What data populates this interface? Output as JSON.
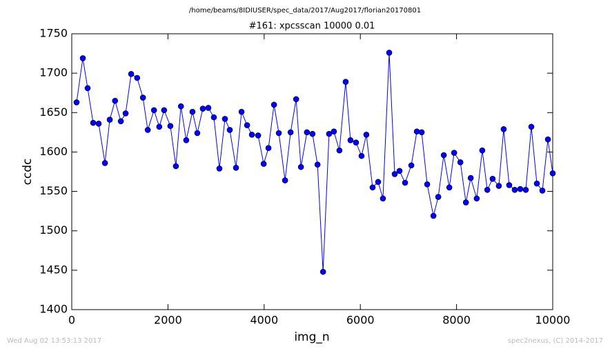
{
  "chart_data": {
    "type": "line",
    "title": "/home/beams/8IDIUSER/spec_data/2017/Aug2017/florian20170801",
    "subtitle": "#161: xpcsscan 10000 0.01",
    "x_label": "img_n",
    "y_label": "ccdc",
    "timestamp": "Wed Aug 02 13:53:13 2017",
    "credit": "spec2nexus, (C) 2014-2017",
    "xlim": [
      0,
      10000
    ],
    "ylim": [
      1400,
      1750
    ],
    "xticks": [
      0,
      2000,
      4000,
      6000,
      8000,
      10000
    ],
    "yticks": [
      1400,
      1450,
      1500,
      1550,
      1600,
      1650,
      1700,
      1750
    ],
    "grid": false,
    "series": [
      {
        "color": "#0000ff",
        "x": [
          100,
          230,
          330,
          445,
          560,
          690,
          790,
          900,
          1020,
          1120,
          1235,
          1360,
          1480,
          1580,
          1710,
          1820,
          1920,
          2050,
          2165,
          2270,
          2380,
          2510,
          2610,
          2725,
          2840,
          2955,
          3070,
          3185,
          3285,
          3415,
          3530,
          3645,
          3745,
          3875,
          3990,
          4090,
          4205,
          4305,
          4435,
          4550,
          4665,
          4765,
          4890,
          5005,
          5110,
          5225,
          5350,
          5450,
          5565,
          5695,
          5795,
          5910,
          6025,
          6125,
          6255,
          6370,
          6470,
          6600,
          6715,
          6815,
          6930,
          7060,
          7175,
          7275,
          7390,
          7520,
          7620,
          7735,
          7850,
          7950,
          8080,
          8195,
          8295,
          8420,
          8535,
          8640,
          8750,
          8880,
          8980,
          9095,
          9210,
          9325,
          9440,
          9555,
          9670,
          9785,
          9900,
          10000
        ],
        "values": [
          1663,
          1719,
          1681,
          1637,
          1636,
          1586,
          1641,
          1665,
          1639,
          1649,
          1699,
          1694,
          1669,
          1628,
          1653,
          1632,
          1653,
          1633,
          1582,
          1658,
          1615,
          1651,
          1624,
          1655,
          1656,
          1644,
          1579,
          1642,
          1628,
          1580,
          1651,
          1634,
          1622,
          1621,
          1585,
          1605,
          1660,
          1624,
          1564,
          1625,
          1667,
          1581,
          1625,
          1623,
          1584,
          1448,
          1623,
          1626,
          1602,
          1689,
          1615,
          1612,
          1595,
          1622,
          1555,
          1562,
          1541,
          1726,
          1572,
          1576,
          1561,
          1583,
          1626,
          1625,
          1559,
          1519,
          1543,
          1596,
          1555,
          1599,
          1587,
          1536,
          1567,
          1541,
          1602,
          1552,
          1566,
          1557,
          1629,
          1558,
          1552,
          1553,
          1552,
          1632,
          1560,
          1551,
          1616,
          1573
        ]
      }
    ]
  }
}
